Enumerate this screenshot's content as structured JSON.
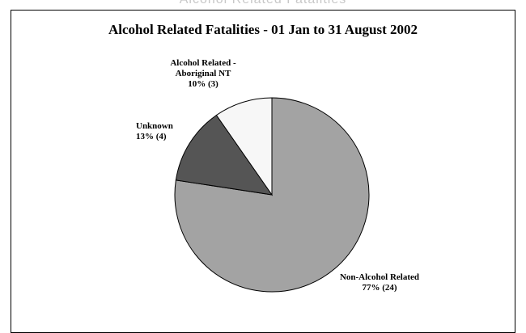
{
  "header_fragment": "Alcohol Related Fatalities",
  "chart_data": {
    "type": "pie",
    "title": "Alcohol Related Fatalities - 01 Jan to 31 August 2002",
    "slices": [
      {
        "label_lines": [
          "Non-Alcohol Related"
        ],
        "percent_text": "77% (24)",
        "value": 24,
        "percent": 77,
        "color": "#a3a3a3"
      },
      {
        "label_lines": [
          "Unknown"
        ],
        "percent_text": "13% (4)",
        "value": 4,
        "percent": 13,
        "color": "#555555"
      },
      {
        "label_lines": [
          "Alcohol Related -",
          "Aboriginal NT"
        ],
        "percent_text": "10% (3)",
        "value": 3,
        "percent": 10,
        "color": "#f7f7f7"
      }
    ]
  }
}
